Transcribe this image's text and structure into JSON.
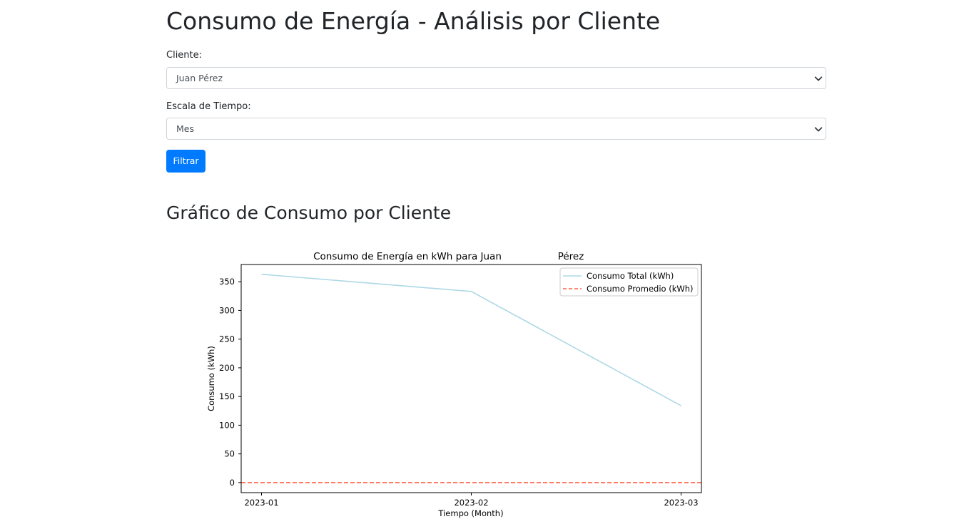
{
  "page": {
    "title": "Consumo de Energía - Análisis por Cliente"
  },
  "form": {
    "cliente_label": "Cliente:",
    "cliente_value": "Juan Pérez",
    "escala_label": "Escala de Tiempo:",
    "escala_value": "Mes",
    "filter_button": "Filtrar"
  },
  "section": {
    "title": "Gráfico de Consumo por Cliente"
  },
  "chart_data": {
    "type": "line",
    "title": "Consumo de Energía en kWh para Juan                Pérez",
    "title_left": "Consumo de Energía en kWh para Juan",
    "title_right": "Pérez",
    "xlabel": "Tiempo (Month)",
    "ylabel": "Consumo (kWh)",
    "categories": [
      "2023-01",
      "2023-02",
      "2023-03"
    ],
    "series": [
      {
        "name": "Consumo Total (kWh)",
        "values": [
          363,
          333,
          134
        ],
        "color": "#add8e6",
        "style": "solid"
      },
      {
        "name": "Consumo Promedio (kWh)",
        "values": [
          0,
          0,
          0
        ],
        "color": "#ff6347",
        "style": "dashed"
      }
    ],
    "yticks": [
      "0",
      "50",
      "100",
      "150",
      "200",
      "250",
      "300",
      "350"
    ],
    "ylim": [
      -17.5,
      380
    ],
    "grid": false,
    "legend": "top-right"
  }
}
